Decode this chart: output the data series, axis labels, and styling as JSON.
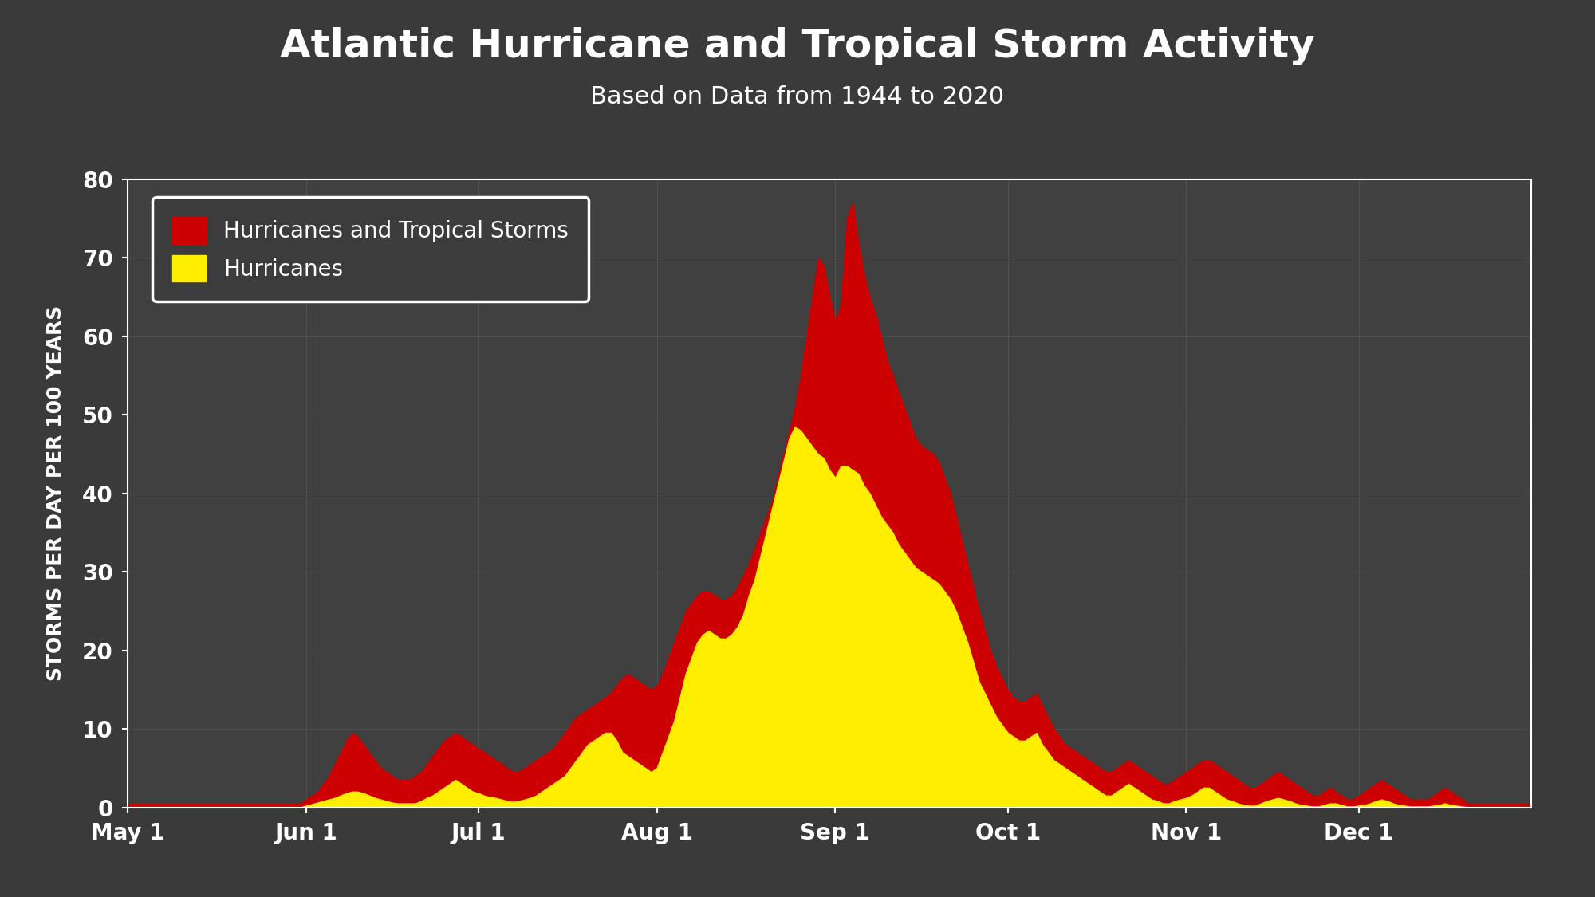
{
  "title": "Atlantic Hurricane and Tropical Storm Activity",
  "subtitle": "Based on Data from 1944 to 2020",
  "ylabel": "STORMS PER DAY PER 100 YEARS",
  "background_color": "#3a3a3a",
  "plot_bg_color": "#404040",
  "grid_color": "#555555",
  "text_color": "#ffffff",
  "ylim": [
    0,
    80
  ],
  "yticks": [
    0,
    10,
    20,
    30,
    40,
    50,
    60,
    70,
    80
  ],
  "title_fontsize": 36,
  "subtitle_fontsize": 22,
  "ylabel_fontsize": 18,
  "tick_fontsize": 20,
  "legend_fontsize": 20,
  "xtick_labels": [
    "May 1",
    "Jun 1",
    "Jul 1",
    "Aug 1",
    "Sep 1",
    "Oct 1",
    "Nov 1",
    "Dec 1"
  ],
  "month_days": [
    0,
    31,
    61,
    92,
    123,
    153,
    184,
    214
  ],
  "red_color": "#cc0000",
  "yellow_color": "#ffee00",
  "total_storms": [
    0.5,
    0.5,
    0.5,
    0.5,
    0.5,
    0.5,
    0.5,
    0.5,
    0.5,
    0.5,
    0.5,
    0.5,
    0.5,
    0.5,
    0.5,
    0.5,
    0.5,
    0.5,
    0.5,
    0.5,
    0.5,
    0.5,
    0.5,
    0.5,
    0.5,
    0.5,
    0.5,
    0.5,
    0.5,
    0.5,
    0.5,
    1.0,
    1.5,
    2.0,
    3.0,
    4.0,
    5.5,
    7.0,
    8.5,
    9.5,
    9.0,
    8.0,
    7.0,
    6.0,
    5.0,
    4.5,
    4.0,
    3.5,
    3.5,
    3.5,
    4.0,
    4.5,
    5.5,
    6.5,
    7.5,
    8.5,
    9.0,
    9.5,
    9.0,
    8.5,
    8.0,
    7.5,
    7.0,
    6.5,
    6.0,
    5.5,
    5.0,
    4.5,
    4.5,
    5.0,
    5.5,
    6.0,
    6.5,
    7.0,
    7.5,
    8.5,
    9.5,
    10.5,
    11.5,
    12.0,
    12.5,
    13.0,
    13.5,
    14.0,
    14.5,
    15.5,
    16.5,
    17.0,
    16.5,
    16.0,
    15.5,
    15.0,
    15.5,
    17.0,
    19.0,
    21.0,
    23.0,
    25.0,
    26.0,
    27.0,
    27.5,
    27.5,
    27.0,
    26.5,
    26.5,
    27.0,
    28.0,
    29.5,
    31.0,
    33.0,
    35.0,
    37.0,
    39.0,
    42.0,
    45.0,
    48.0,
    51.0,
    55.0,
    60.0,
    65.0,
    70.0,
    69.0,
    65.0,
    62.0,
    64.0,
    75.0,
    77.0,
    72.0,
    68.0,
    65.0,
    63.0,
    60.0,
    57.0,
    55.0,
    53.0,
    51.0,
    49.0,
    47.0,
    46.0,
    45.5,
    45.0,
    44.0,
    42.0,
    40.0,
    37.0,
    34.0,
    31.0,
    28.0,
    25.0,
    22.5,
    20.0,
    18.0,
    16.5,
    15.0,
    14.0,
    13.5,
    13.5,
    14.0,
    14.5,
    13.0,
    11.5,
    10.0,
    9.0,
    8.0,
    7.5,
    7.0,
    6.5,
    6.0,
    5.5,
    5.0,
    4.5,
    4.5,
    5.0,
    5.5,
    6.0,
    5.5,
    5.0,
    4.5,
    4.0,
    3.5,
    3.0,
    3.0,
    3.5,
    4.0,
    4.5,
    5.0,
    5.5,
    6.0,
    6.0,
    5.5,
    5.0,
    4.5,
    4.0,
    3.5,
    3.0,
    2.5,
    2.5,
    3.0,
    3.5,
    4.0,
    4.5,
    4.0,
    3.5,
    3.0,
    2.5,
    2.0,
    1.5,
    1.5,
    2.0,
    2.5,
    2.0,
    1.5,
    1.0,
    1.0,
    1.5,
    2.0,
    2.5,
    3.0,
    3.5,
    3.0,
    2.5,
    2.0,
    1.5,
    1.0,
    1.0,
    1.0,
    1.0,
    1.5,
    2.0,
    2.5,
    2.0,
    1.5,
    1.0,
    0.5,
    0.5,
    0.5,
    0.5,
    0.5,
    0.5,
    0.5,
    0.5,
    0.5,
    0.5,
    0.5,
    0.5
  ],
  "hurricanes": [
    0.0,
    0.0,
    0.0,
    0.0,
    0.0,
    0.0,
    0.0,
    0.0,
    0.0,
    0.0,
    0.0,
    0.0,
    0.0,
    0.0,
    0.0,
    0.0,
    0.0,
    0.0,
    0.0,
    0.0,
    0.0,
    0.0,
    0.0,
    0.0,
    0.0,
    0.0,
    0.0,
    0.0,
    0.0,
    0.0,
    0.0,
    0.2,
    0.4,
    0.6,
    0.8,
    1.0,
    1.2,
    1.5,
    1.8,
    2.0,
    2.0,
    1.8,
    1.5,
    1.2,
    1.0,
    0.8,
    0.6,
    0.5,
    0.5,
    0.5,
    0.5,
    0.8,
    1.2,
    1.5,
    2.0,
    2.5,
    3.0,
    3.5,
    3.0,
    2.5,
    2.0,
    1.8,
    1.5,
    1.3,
    1.2,
    1.0,
    0.8,
    0.7,
    0.8,
    1.0,
    1.2,
    1.5,
    2.0,
    2.5,
    3.0,
    3.5,
    4.0,
    5.0,
    6.0,
    7.0,
    8.0,
    8.5,
    9.0,
    9.5,
    9.5,
    8.5,
    7.0,
    6.5,
    6.0,
    5.5,
    5.0,
    4.5,
    5.0,
    7.0,
    9.0,
    11.0,
    14.0,
    17.0,
    19.0,
    21.0,
    22.0,
    22.5,
    22.0,
    21.5,
    21.5,
    22.0,
    23.0,
    24.5,
    27.0,
    29.0,
    32.0,
    35.0,
    38.0,
    41.0,
    44.0,
    47.0,
    48.5,
    48.0,
    47.0,
    46.0,
    45.0,
    44.5,
    43.0,
    42.0,
    43.5,
    43.5,
    43.0,
    42.5,
    41.0,
    40.0,
    38.5,
    37.0,
    36.0,
    35.0,
    33.5,
    32.5,
    31.5,
    30.5,
    30.0,
    29.5,
    29.0,
    28.5,
    27.5,
    26.5,
    25.0,
    23.0,
    21.0,
    18.5,
    16.0,
    14.5,
    13.0,
    11.5,
    10.5,
    9.5,
    9.0,
    8.5,
    8.5,
    9.0,
    9.5,
    8.0,
    7.0,
    6.0,
    5.5,
    5.0,
    4.5,
    4.0,
    3.5,
    3.0,
    2.5,
    2.0,
    1.5,
    1.5,
    2.0,
    2.5,
    3.0,
    2.5,
    2.0,
    1.5,
    1.0,
    0.8,
    0.5,
    0.5,
    0.8,
    1.0,
    1.2,
    1.5,
    2.0,
    2.5,
    2.5,
    2.0,
    1.5,
    1.0,
    0.8,
    0.5,
    0.3,
    0.2,
    0.2,
    0.5,
    0.8,
    1.0,
    1.2,
    1.0,
    0.8,
    0.5,
    0.3,
    0.2,
    0.1,
    0.1,
    0.3,
    0.5,
    0.5,
    0.3,
    0.1,
    0.1,
    0.2,
    0.3,
    0.5,
    0.8,
    1.0,
    0.8,
    0.5,
    0.3,
    0.2,
    0.1,
    0.1,
    0.1,
    0.1,
    0.2,
    0.3,
    0.5,
    0.3,
    0.2,
    0.1,
    0.0,
    0.0,
    0.0,
    0.0,
    0.0,
    0.0,
    0.0,
    0.0,
    0.0,
    0.0,
    0.0,
    0.0
  ]
}
